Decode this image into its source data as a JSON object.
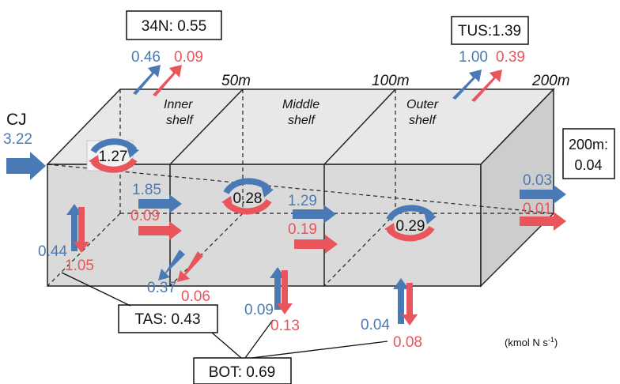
{
  "colors": {
    "blue": "#4a7ab5",
    "red": "#e8555a",
    "box_face": "#dcdcdc",
    "box_top": "#e8e8e8",
    "box_side": "#cfcfcf"
  },
  "depths": {
    "d50": "50m",
    "d100": "100m",
    "d200": "200m"
  },
  "shelves": {
    "inner": [
      "Inner",
      "shelf"
    ],
    "middle": [
      "Middle",
      "shelf"
    ],
    "outer": [
      "Outer",
      "shelf"
    ]
  },
  "boxes": {
    "n34": "34N: 0.55",
    "tus": "TUS:1.39",
    "right": [
      "200m:",
      "0.04"
    ],
    "tas": "TAS: 0.43",
    "bot": "BOT: 0.69"
  },
  "cj": {
    "label": "CJ",
    "value": "3.22"
  },
  "top_fluxes": {
    "n34": {
      "blue": "0.46",
      "red": "0.09"
    },
    "tus": {
      "blue": "1.00",
      "red": "0.39"
    }
  },
  "recycling": {
    "inner": "1.27",
    "middle": "0.28",
    "outer": "0.29"
  },
  "lateral": {
    "inner_to_middle": {
      "blue": "1.85",
      "red": "0.09"
    },
    "middle_to_outer": {
      "blue": "1.29",
      "red": "0.19"
    },
    "outer_to_offshore": {
      "blue": "0.03",
      "red": "0.01"
    }
  },
  "bottom_fluxes": {
    "left": {
      "blue": "0.44",
      "red": "1.05"
    },
    "tas": {
      "blue": "0.37",
      "red": "0.06"
    },
    "middle": {
      "blue": "0.09",
      "red": "0.13"
    },
    "outer": {
      "blue": "0.04",
      "red": "0.08"
    }
  },
  "unit_note": {
    "main": "(kmol N s",
    "sup": "-1",
    "close": ")"
  }
}
